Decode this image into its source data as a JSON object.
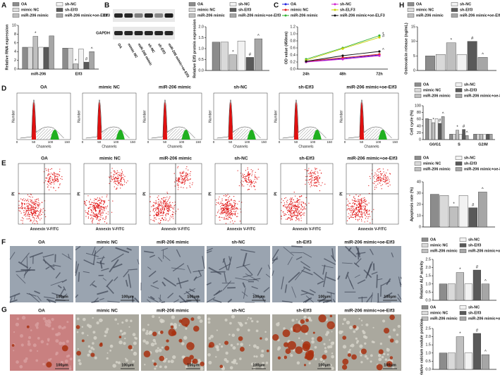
{
  "panel_labels": [
    "A",
    "B",
    "C",
    "H",
    "D",
    "E",
    "F",
    "G"
  ],
  "groups": [
    "OA",
    "mimic NC",
    "miR-206 mimic",
    "sh-NC",
    "sh-Elf3",
    "miR-206 mimic+oe-Elf3"
  ],
  "blot": {
    "proteins": [
      "Elf3",
      "GAPDH"
    ]
  },
  "histogram": {
    "x_label": "Channels",
    "y_label": "Number",
    "x_ticks": [
      0,
      50,
      100,
      150
    ]
  },
  "flow": {
    "x_label": "Annexin V-FITC",
    "y_label": "PI"
  },
  "scale_bar": "100μm",
  "chart_data": [
    {
      "type": "bar",
      "ylabel": "Relative RNA expression",
      "categories": [
        "miR-206",
        "Elf3"
      ],
      "ylim": [
        0,
        10
      ],
      "yticks": [
        0,
        2,
        4,
        6,
        8,
        10
      ],
      "series": [
        {
          "name": "OA",
          "color": "#8c8c8c",
          "values": [
            5,
            4.8
          ],
          "annotations": [
            null,
            null
          ]
        },
        {
          "name": "mimic NC",
          "color": "#d9d9d9",
          "values": [
            5,
            4.8
          ],
          "annotations": [
            null,
            null
          ]
        },
        {
          "name": "miR-206 mimic",
          "color": "#bfbfbf",
          "values": [
            7.5,
            1.2
          ],
          "annotations": [
            "*",
            "*"
          ]
        },
        {
          "name": "sh-NC",
          "color": "#f2f2f2",
          "values": [
            5,
            4.6
          ],
          "annotations": [
            null,
            null
          ]
        },
        {
          "name": "sh-Elf3",
          "color": "#595959",
          "values": [
            5,
            1.6
          ],
          "annotations": [
            null,
            "#"
          ]
        },
        {
          "name": "miR-206 mimic+oe-Elf3",
          "color": "#a6a6a6",
          "values": [
            7.6,
            4
          ],
          "annotations": [
            null,
            "^"
          ]
        }
      ]
    },
    {
      "type": "bar",
      "ylabel": "Relative Elf3 protein expression",
      "ylim": [
        0,
        2
      ],
      "yticks": [
        {
          "value": 0,
          "label": "0.0"
        },
        0.5,
        {
          "value": 1,
          "label": "1.0"
        },
        1.5,
        {
          "value": 2,
          "label": "2.0"
        }
      ],
      "series": [
        {
          "name": "OA",
          "color": "#8c8c8c",
          "values": [
            1.3
          ],
          "annotations": [
            null
          ]
        },
        {
          "name": "mimic NC",
          "color": "#d9d9d9",
          "values": [
            1.3
          ],
          "annotations": [
            null
          ]
        },
        {
          "name": "miR-206 mimic",
          "color": "#bfbfbf",
          "values": [
            0.72
          ],
          "annotations": [
            "*"
          ]
        },
        {
          "name": "sh-NC",
          "color": "#f2f2f2",
          "values": [
            1.35
          ],
          "annotations": [
            null
          ]
        },
        {
          "name": "sh-Elf3",
          "color": "#595959",
          "values": [
            0.6
          ],
          "annotations": [
            "#"
          ]
        },
        {
          "name": "miR-206 mimic+oe-Elf3",
          "color": "#a6a6a6",
          "values": [
            1.45
          ],
          "annotations": [
            "^"
          ]
        }
      ]
    },
    {
      "type": "line",
      "ylabel": "OD value (450nm)",
      "categories": [
        "24h",
        "48h",
        "72h"
      ],
      "ylim": [
        0,
        1.2
      ],
      "yticks": [
        {
          "value": 0,
          "label": "0.0"
        },
        0.2,
        0.4,
        0.6,
        0.8,
        {
          "value": 1,
          "label": "1.0"
        },
        1.2
      ],
      "series": [
        {
          "name": "OA",
          "color": "#2020e0",
          "values": [
            0.2,
            0.3,
            0.4
          ],
          "annotations": [
            null,
            null,
            null
          ]
        },
        {
          "name": "mimic NC",
          "color": "#e02020",
          "values": [
            0.22,
            0.32,
            0.42
          ],
          "annotations": [
            null,
            null,
            null
          ]
        },
        {
          "name": "miR-206 mimic",
          "color": "#30b030",
          "values": [
            0.28,
            0.6,
            0.95
          ],
          "annotations": [
            null,
            null,
            "*"
          ]
        },
        {
          "name": "sh-NC",
          "color": "#d020d0",
          "values": [
            0.2,
            0.28,
            0.38
          ],
          "annotations": [
            null,
            null,
            null
          ]
        },
        {
          "name": "sh-ELF3",
          "color": "#c8d000",
          "values": [
            0.25,
            0.58,
            0.9
          ],
          "annotations": [
            null,
            null,
            "#"
          ]
        },
        {
          "name": "miR-206 mimic+oe-ELF3",
          "color": "#111111",
          "values": [
            0.22,
            0.38,
            0.5
          ],
          "annotations": [
            null,
            null,
            "^"
          ]
        }
      ]
    },
    {
      "type": "bar",
      "ylabel": "Osteocalcin release (ng/mL)",
      "ylim": [
        0,
        15
      ],
      "yticks": [
        0,
        5,
        10,
        15
      ],
      "series": [
        {
          "name": "OA",
          "color": "#8c8c8c",
          "values": [
            5
          ],
          "annotations": [
            null
          ]
        },
        {
          "name": "mimic NC",
          "color": "#d9d9d9",
          "values": [
            5.5
          ],
          "annotations": [
            null
          ]
        },
        {
          "name": "miR-206 mimic",
          "color": "#bfbfbf",
          "values": [
            9.5
          ],
          "annotations": [
            "*"
          ]
        },
        {
          "name": "sh-NC",
          "color": "#f2f2f2",
          "values": [
            5.5
          ],
          "annotations": [
            null
          ]
        },
        {
          "name": "sh-Elf3",
          "color": "#595959",
          "values": [
            10
          ],
          "annotations": [
            "#"
          ]
        },
        {
          "name": "miR-206 mimic+oe-Elf3",
          "color": "#a6a6a6",
          "values": [
            4.5
          ],
          "annotations": [
            "^"
          ]
        }
      ]
    },
    {
      "type": "bar",
      "ylabel": "Cell cycle (%)",
      "categories": [
        "G0/G1",
        "S",
        "G2/M"
      ],
      "ylim": [
        0,
        100
      ],
      "yticks": [
        0,
        20,
        40,
        60,
        80,
        100
      ],
      "series": [
        {
          "name": "OA",
          "color": "#8c8c8c",
          "values": [
            62,
            16,
            16
          ],
          "annotations": [
            null,
            null,
            null
          ]
        },
        {
          "name": "mimic NC",
          "color": "#d9d9d9",
          "values": [
            60,
            16,
            16
          ],
          "annotations": [
            null,
            null,
            null
          ]
        },
        {
          "name": "miR-206 mimic",
          "color": "#bfbfbf",
          "values": [
            50,
            28,
            16
          ],
          "annotations": [
            "*",
            "*",
            null
          ]
        },
        {
          "name": "sh-NC",
          "color": "#f2f2f2",
          "values": [
            62,
            16,
            15
          ],
          "annotations": [
            null,
            null,
            null
          ]
        },
        {
          "name": "sh-Elf3",
          "color": "#595959",
          "values": [
            48,
            30,
            16
          ],
          "annotations": [
            "#",
            "#",
            null
          ]
        },
        {
          "name": "miR-206 mimic+oe-Elf3",
          "color": "#a6a6a6",
          "values": [
            68,
            12,
            16
          ],
          "annotations": [
            "^",
            "^",
            null
          ]
        }
      ]
    },
    {
      "type": "bar",
      "ylabel": "Apoptosis rate (%)",
      "ylim": [
        0,
        40
      ],
      "yticks": [
        0,
        10,
        20,
        30,
        40
      ],
      "series": [
        {
          "name": "OA",
          "color": "#8c8c8c",
          "values": [
            29
          ],
          "annotations": [
            null
          ]
        },
        {
          "name": "mimic NC",
          "color": "#d9d9d9",
          "values": [
            28
          ],
          "annotations": [
            null
          ]
        },
        {
          "name": "miR-206 mimic",
          "color": "#bfbfbf",
          "values": [
            18
          ],
          "annotations": [
            "*"
          ]
        },
        {
          "name": "sh-NC",
          "color": "#f2f2f2",
          "values": [
            28
          ],
          "annotations": [
            null
          ]
        },
        {
          "name": "sh-Elf3",
          "color": "#595959",
          "values": [
            17
          ],
          "annotations": [
            "#"
          ]
        },
        {
          "name": "miR-206 mimic+oe-Elf3",
          "color": "#a6a6a6",
          "values": [
            31
          ],
          "annotations": [
            "^"
          ]
        }
      ]
    },
    {
      "type": "bar",
      "ylabel": "Relative ALP activity",
      "ylim": [
        0,
        2.5
      ],
      "yticks": [
        {
          "value": 0,
          "label": "0.0"
        },
        0.5,
        {
          "value": 1,
          "label": "1.0"
        },
        1.5,
        {
          "value": 2,
          "label": "2.0"
        },
        2.5
      ],
      "series": [
        {
          "name": "OA",
          "color": "#8c8c8c",
          "values": [
            1
          ],
          "annotations": [
            null
          ]
        },
        {
          "name": "mimic NC",
          "color": "#d9d9d9",
          "values": [
            1
          ],
          "annotations": [
            null
          ]
        },
        {
          "name": "miR-206 mimic",
          "color": "#bfbfbf",
          "values": [
            1.7
          ],
          "annotations": [
            "*"
          ]
        },
        {
          "name": "sh-NC",
          "color": "#f2f2f2",
          "values": [
            1
          ],
          "annotations": [
            null
          ]
        },
        {
          "name": "sh-Elf3",
          "color": "#595959",
          "values": [
            1.85
          ],
          "annotations": [
            "#"
          ]
        },
        {
          "name": "miR-206 mimic+oe-Elf3",
          "color": "#a6a6a6",
          "values": [
            1
          ],
          "annotations": [
            "^"
          ]
        }
      ]
    },
    {
      "type": "bar",
      "ylabel": "Relative calcium nodule position",
      "ylim": [
        0,
        2.5
      ],
      "yticks": [
        {
          "value": 0,
          "label": "0.0"
        },
        0.5,
        {
          "value": 1,
          "label": "1.0"
        },
        1.5,
        {
          "value": 2,
          "label": "2.0"
        },
        2.5
      ],
      "series": [
        {
          "name": "OA",
          "color": "#8c8c8c",
          "values": [
            1
          ],
          "annotations": [
            null
          ]
        },
        {
          "name": "mimic NC",
          "color": "#d9d9d9",
          "values": [
            1
          ],
          "annotations": [
            null
          ]
        },
        {
          "name": "miR-206 mimic",
          "color": "#bfbfbf",
          "values": [
            2
          ],
          "annotations": [
            "*"
          ]
        },
        {
          "name": "sh-NC",
          "color": "#f2f2f2",
          "values": [
            1
          ],
          "annotations": [
            null
          ]
        },
        {
          "name": "sh-Elf3",
          "color": "#595959",
          "values": [
            2.2
          ],
          "annotations": [
            "#"
          ]
        },
        {
          "name": "miR-206 mimic+oe-Elf3",
          "color": "#a6a6a6",
          "values": [
            0.9
          ],
          "annotations": [
            "^"
          ]
        }
      ]
    }
  ]
}
